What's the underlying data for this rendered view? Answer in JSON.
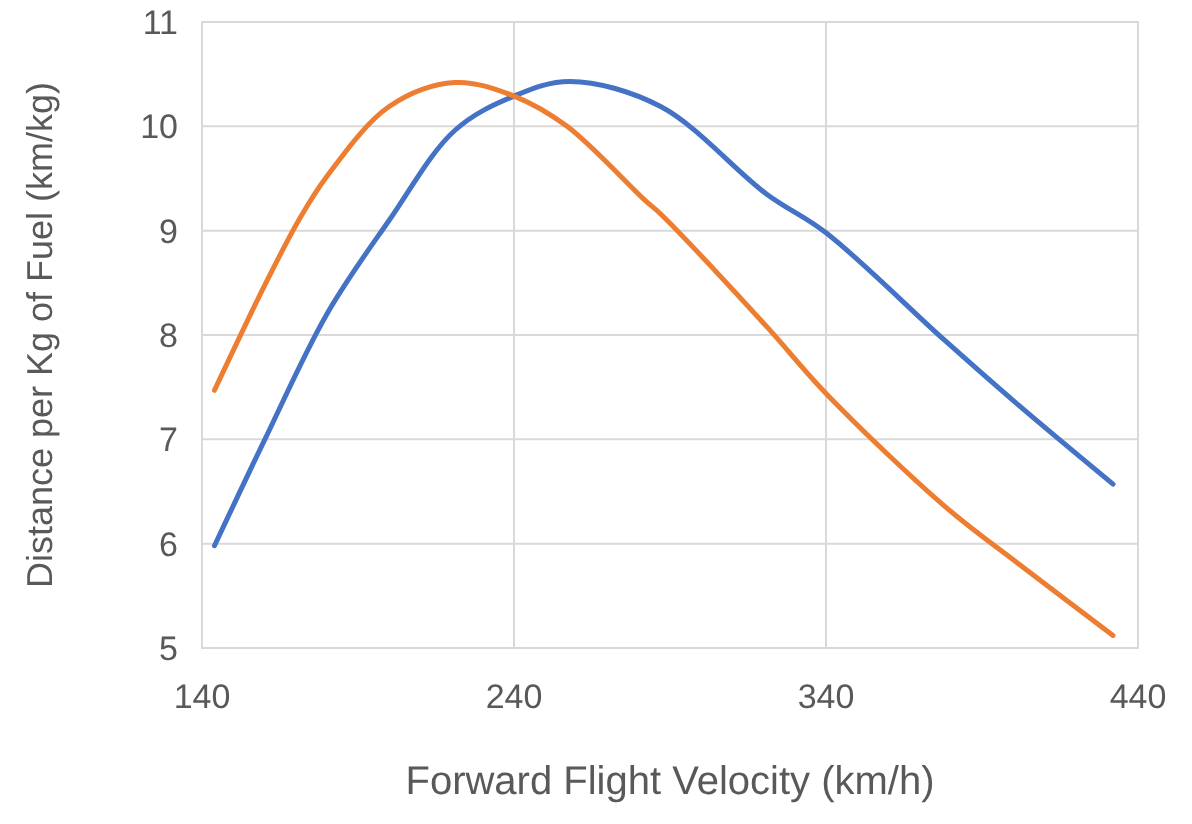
{
  "chart_data": {
    "type": "line",
    "xlabel": "Forward Flight Velocity (km/h)",
    "ylabel": "Distance per Kg of Fuel (km/kg)",
    "xlim": [
      140,
      440
    ],
    "xticks": [
      140,
      240,
      340,
      440
    ],
    "ylim": [
      5,
      11
    ],
    "yticks": [
      5,
      6,
      7,
      8,
      9,
      10,
      11
    ],
    "grid": true,
    "marker": "none",
    "line_style": "solid",
    "series": [
      {
        "color": "#4472c4",
        "x": [
          144,
          160,
          180,
          200,
          221,
          240,
          258,
          287,
          321,
          340,
          378,
          402,
          432
        ],
        "values": [
          5.98,
          6.99,
          8.2,
          9.1,
          9.96,
          10.29,
          10.43,
          10.19,
          9.35,
          8.98,
          7.95,
          7.32,
          6.57
        ]
      },
      {
        "color": "#ed7d31",
        "x": [
          144,
          160,
          171,
          180,
          200,
          221,
          240,
          257,
          282,
          287,
          321,
          340,
          378,
          402,
          432
        ],
        "values": [
          7.47,
          8.47,
          9.1,
          9.52,
          10.19,
          10.42,
          10.29,
          10.0,
          9.29,
          9.16,
          8.08,
          7.44,
          6.36,
          5.8,
          5.12
        ]
      }
    ]
  }
}
